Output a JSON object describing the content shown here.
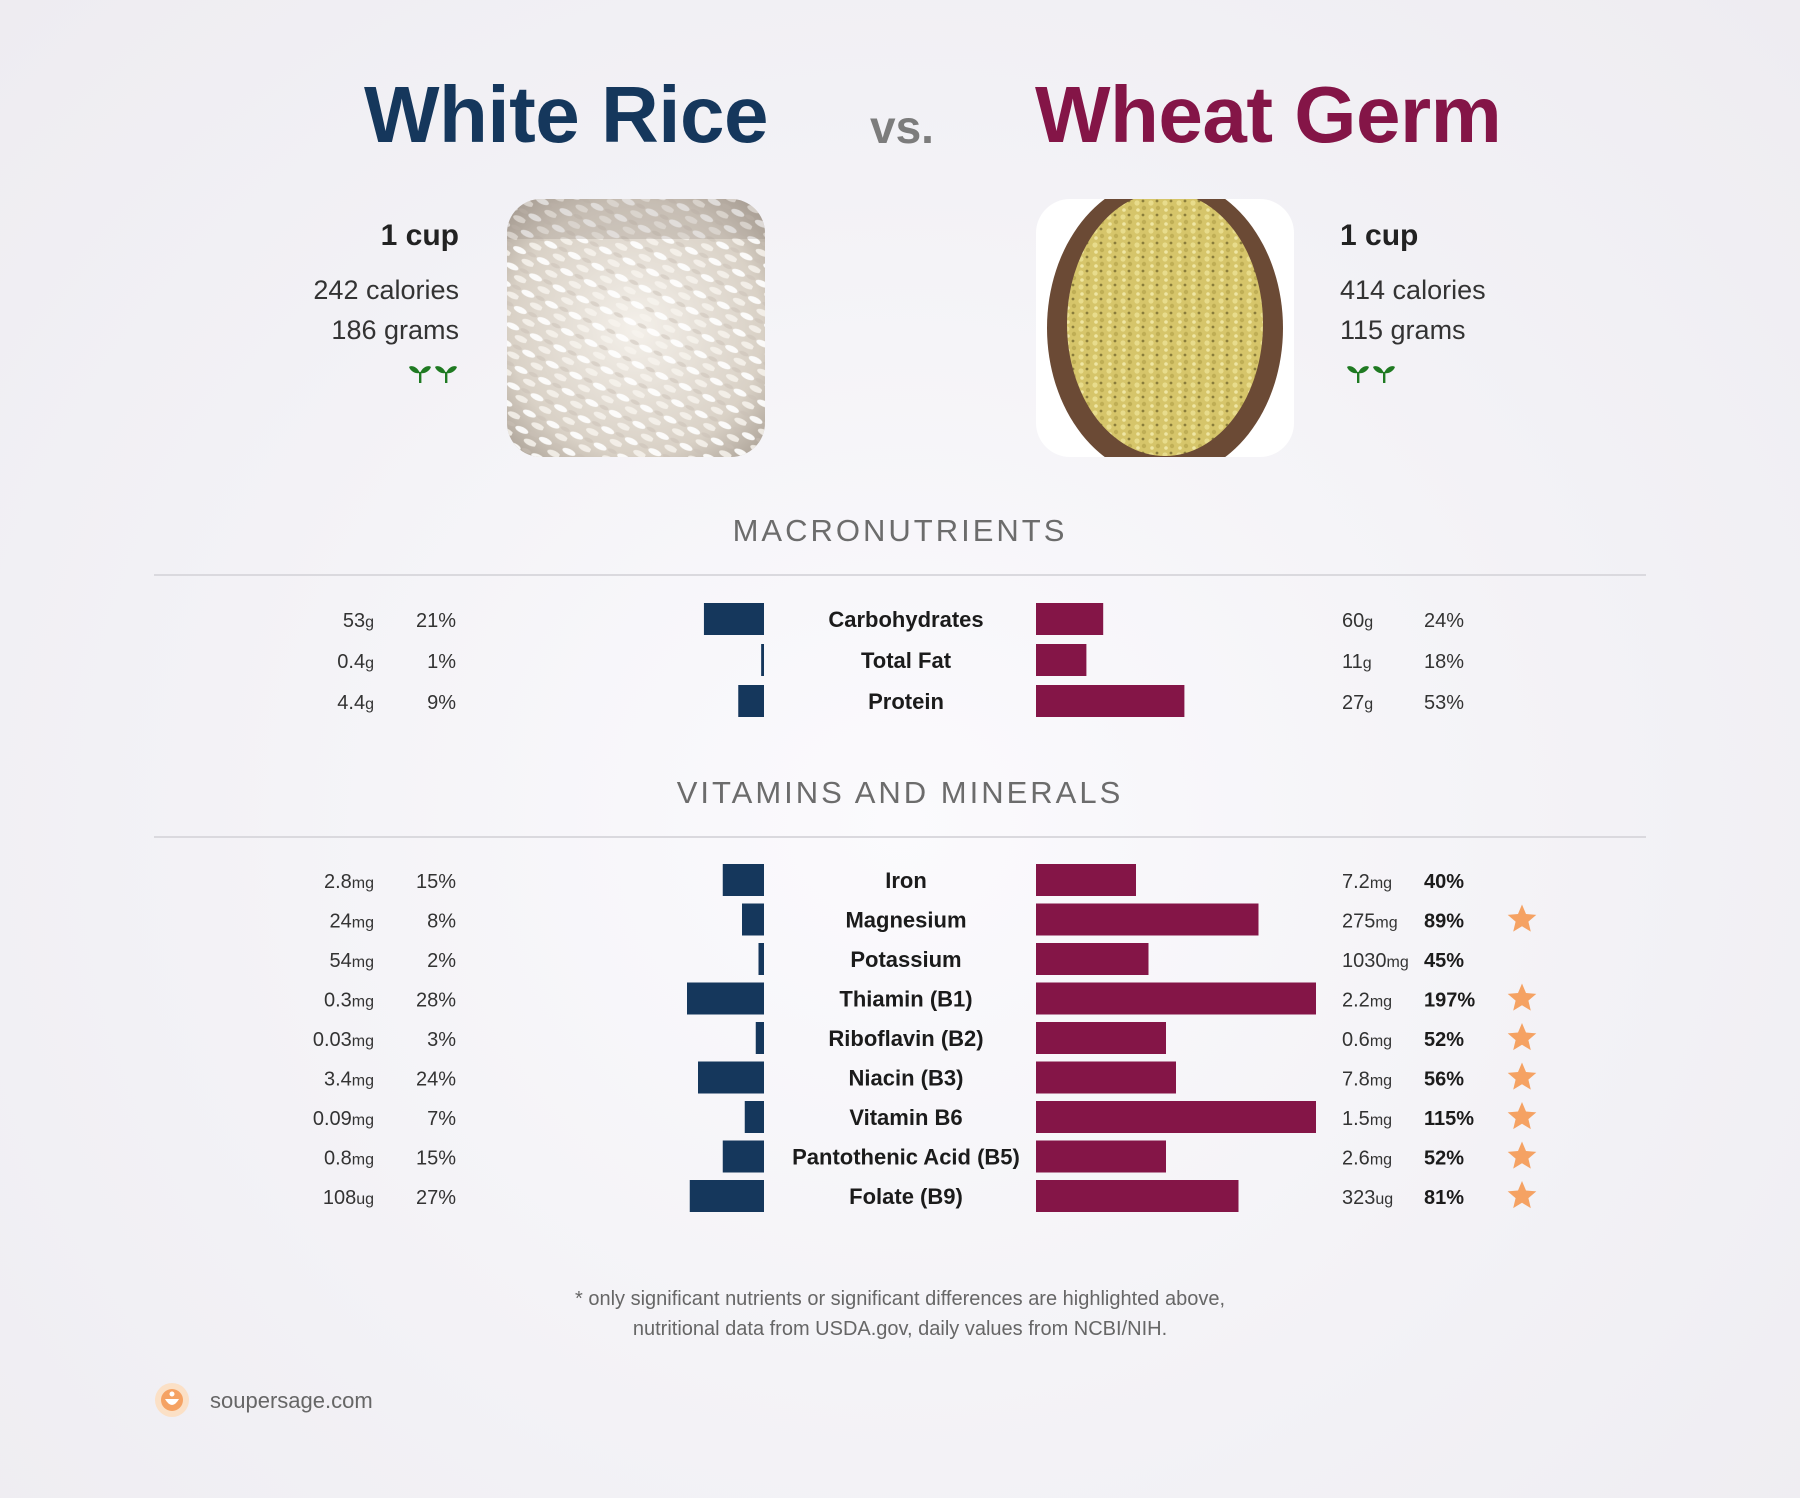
{
  "header": {
    "left_food": "White Rice",
    "vs": "vs.",
    "right_food": "Wheat Germ"
  },
  "left": {
    "serving": "1 cup",
    "calories": "242 calories",
    "grams": "186 grams",
    "icon": "seedling-icon"
  },
  "right": {
    "serving": "1 cup",
    "calories": "414 calories",
    "grams": "115 grams",
    "icon": "seedling-icon"
  },
  "sections": {
    "macros": "MACRONUTRIENTS",
    "vitamins": "VITAMINS AND MINERALS"
  },
  "colors": {
    "left": "#15375c",
    "right": "#841547",
    "star": "#f5a263",
    "seedling": "#1f7a22"
  },
  "chart_data": [
    {
      "type": "bar",
      "title": "MACRONUTRIENTS",
      "categories": [
        "Carbohydrates",
        "Total Fat",
        "Protein"
      ],
      "series": [
        {
          "name": "White Rice",
          "amounts": [
            "53",
            "0.4",
            "4.4"
          ],
          "units": [
            "g",
            "g",
            "g"
          ],
          "percent_labels": [
            "21%",
            "1%",
            "9%"
          ],
          "values": [
            21,
            1,
            9
          ]
        },
        {
          "name": "Wheat Germ",
          "amounts": [
            "60",
            "11",
            "27"
          ],
          "units": [
            "g",
            "g",
            "g"
          ],
          "percent_labels": [
            "24%",
            "18%",
            "53%"
          ],
          "values": [
            24,
            18,
            53
          ]
        }
      ]
    },
    {
      "type": "bar",
      "title": "VITAMINS AND MINERALS",
      "categories": [
        "Iron",
        "Magnesium",
        "Potassium",
        "Thiamin (B1)",
        "Riboflavin (B2)",
        "Niacin (B3)",
        "Vitamin B6",
        "Pantothenic Acid (B5)",
        "Folate (B9)"
      ],
      "series": [
        {
          "name": "White Rice",
          "amounts": [
            "2.8",
            "24",
            "54",
            "0.3",
            "0.03",
            "3.4",
            "0.09",
            "0.8",
            "108"
          ],
          "units": [
            "mg",
            "mg",
            "mg",
            "mg",
            "mg",
            "mg",
            "mg",
            "mg",
            "ug"
          ],
          "percent_labels": [
            "15%",
            "8%",
            "2%",
            "28%",
            "3%",
            "24%",
            "7%",
            "15%",
            "27%"
          ],
          "values": [
            15,
            8,
            2,
            28,
            3,
            24,
            7,
            15,
            27
          ]
        },
        {
          "name": "Wheat Germ",
          "amounts": [
            "7.2",
            "275",
            "1030",
            "2.2",
            "0.6",
            "7.8",
            "1.5",
            "2.6",
            "323"
          ],
          "units": [
            "mg",
            "mg",
            "mg",
            "mg",
            "mg",
            "mg",
            "mg",
            "mg",
            "ug"
          ],
          "percent_labels": [
            "40%",
            "89%",
            "45%",
            "197%",
            "52%",
            "56%",
            "115%",
            "52%",
            "81%"
          ],
          "values": [
            40,
            89,
            45,
            197,
            52,
            56,
            115,
            52,
            81
          ],
          "highlighted": [
            false,
            true,
            false,
            true,
            true,
            true,
            true,
            true,
            true
          ],
          "bold": [
            true,
            true,
            true,
            true,
            true,
            true,
            true,
            true,
            true
          ]
        }
      ]
    }
  ],
  "footnote": {
    "line1": "* only significant nutrients or significant differences are highlighted above,",
    "line2": "nutritional data from USDA.gov, daily values from NCBI/NIH."
  },
  "brand": {
    "name": "soupersage.com",
    "icon": "soupersage-logo-icon"
  }
}
